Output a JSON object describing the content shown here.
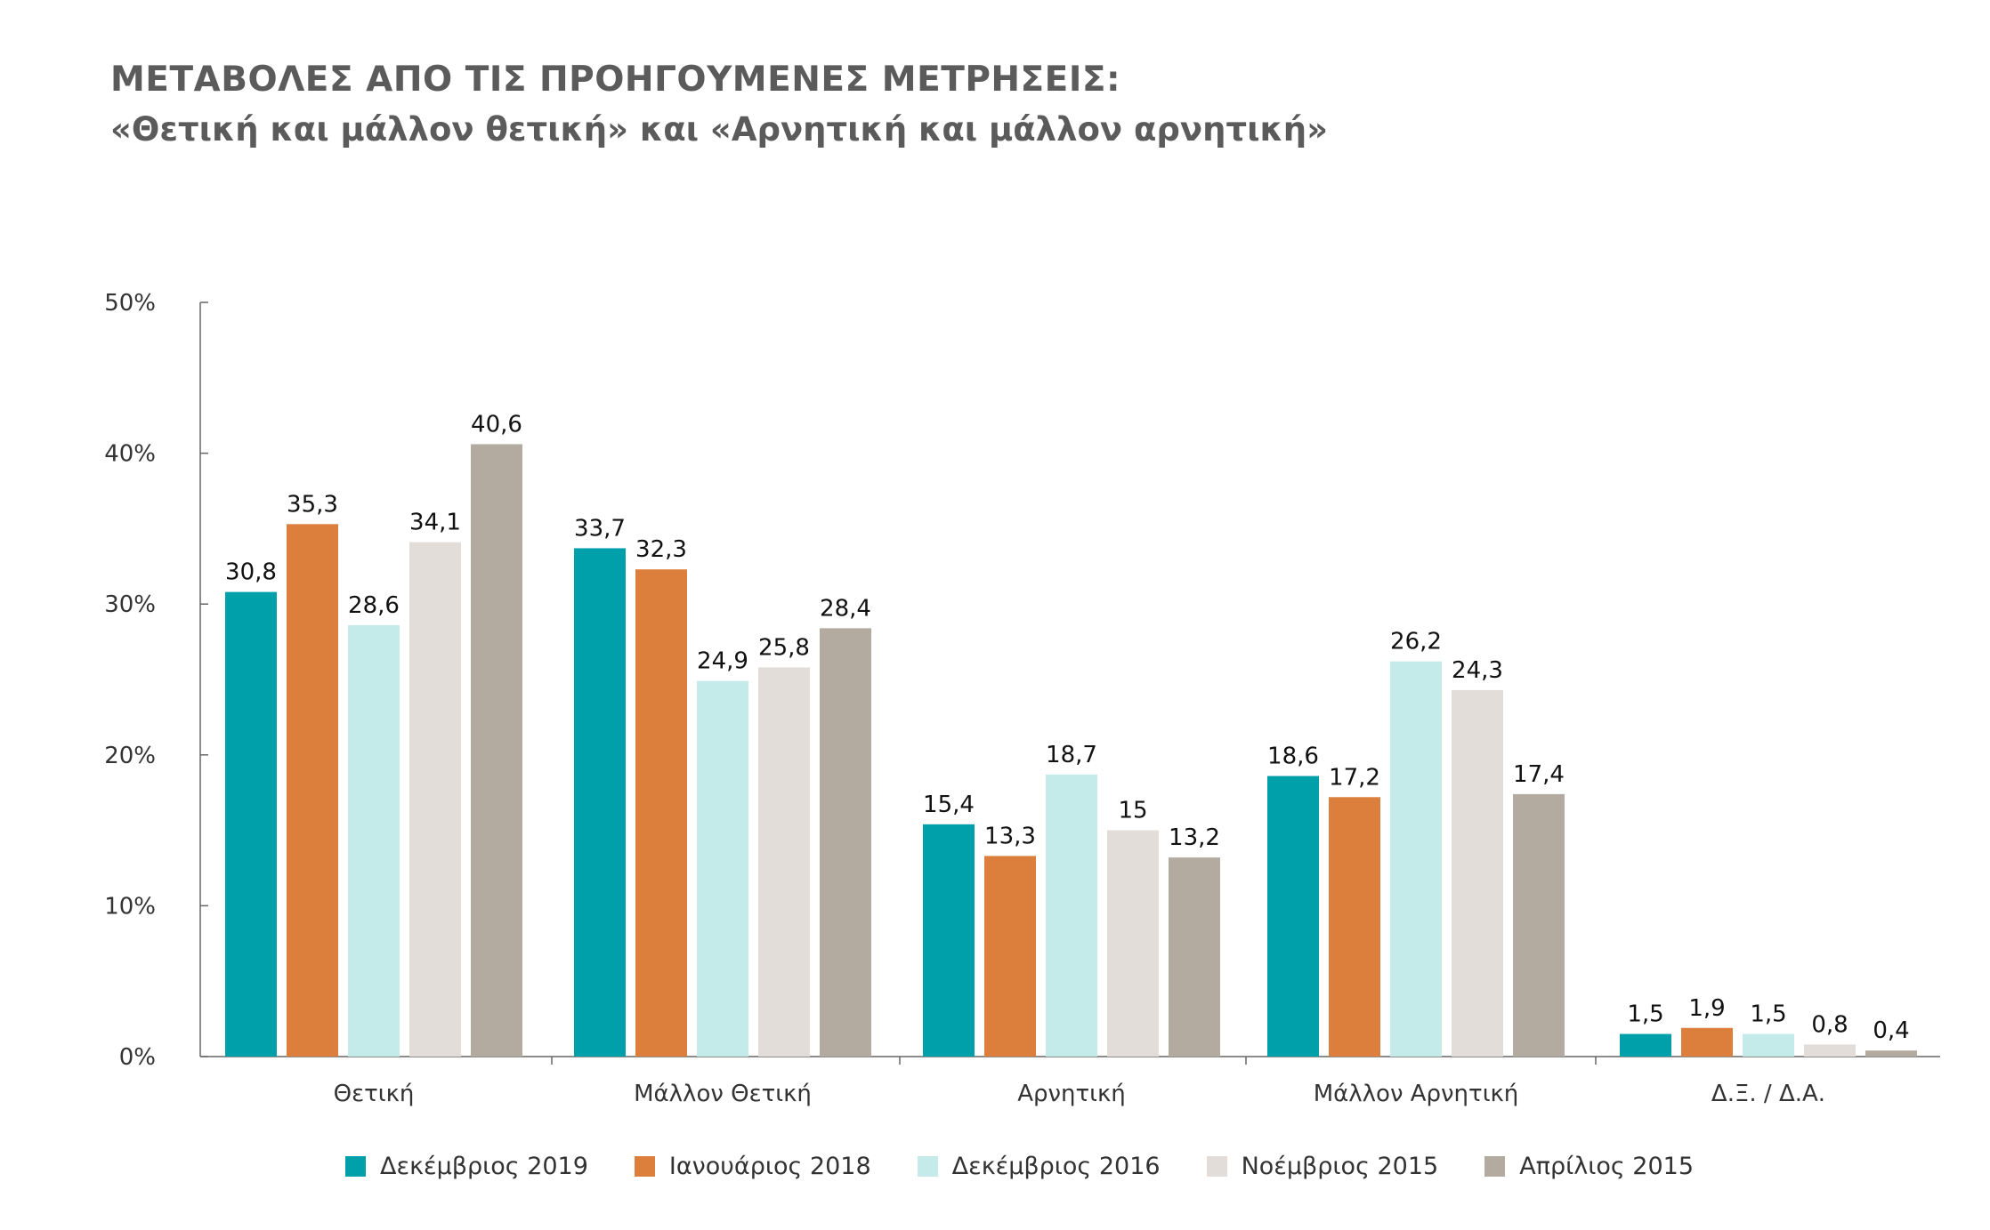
{
  "title": "ΜΕΤΑΒΟΛΕΣ ΑΠΟ ΤΙΣ ΠΡΟΗΓΟΥΜΕΝΕΣ ΜΕΤΡΗΣΕΙΣ:",
  "subtitle": "«Θετική και μάλλον θετική» και «Αρνητική και μάλλον αρνητική»",
  "chart_data": {
    "type": "bar",
    "title": "ΜΕΤΑΒΟΛΕΣ ΑΠΟ ΤΙΣ ΠΡΟΗΓΟΥΜΕΝΕΣ ΜΕΤΡΗΣΕΙΣ:",
    "subtitle": "«Θετική και μάλλον θετική» και «Αρνητική και μάλλον αρνητική»",
    "categories": [
      "Θετική",
      "Μάλλον Θετική",
      "Αρνητική",
      "Μάλλον Αρνητική",
      "Δ.Ξ. / Δ.Α."
    ],
    "series": [
      {
        "name": "Δεκέμβριος 2019",
        "color": "#00a0ab",
        "values": [
          30.8,
          33.7,
          15.4,
          18.6,
          1.5
        ],
        "labels": [
          "30,8",
          "33,7",
          "15,4",
          "18,6",
          "1,5"
        ]
      },
      {
        "name": "Ιανουάριος 2018",
        "color": "#dd7f3c",
        "values": [
          35.3,
          32.3,
          13.3,
          17.2,
          1.9
        ],
        "labels": [
          "35,3",
          "32,3",
          "13,3",
          "17,2",
          "1,9"
        ]
      },
      {
        "name": "Δεκέμβριος 2016",
        "color": "#c4eaea",
        "values": [
          28.6,
          24.9,
          18.7,
          26.2,
          1.5
        ],
        "labels": [
          "28,6",
          "24,9",
          "18,7",
          "26,2",
          "1,5"
        ]
      },
      {
        "name": "Νοέμβριος 2015",
        "color": "#e2ddd9",
        "values": [
          34.1,
          25.8,
          15,
          24.3,
          0.8
        ],
        "labels": [
          "34,1",
          "25,8",
          "15",
          "24,3",
          "0,8"
        ]
      },
      {
        "name": "Απρίλιος 2015",
        "color": "#b3aba0",
        "values": [
          40.6,
          28.4,
          13.2,
          17.4,
          0.4
        ],
        "labels": [
          "40,6",
          "28,4",
          "13,2",
          "17,4",
          "0,4"
        ]
      }
    ],
    "y_ticks": [
      "0%",
      "10%",
      "20%",
      "30%",
      "40%",
      "50%"
    ],
    "ylim": [
      0,
      50
    ],
    "xlabel": "",
    "ylabel": "",
    "grid": false,
    "legend_position": "bottom"
  }
}
